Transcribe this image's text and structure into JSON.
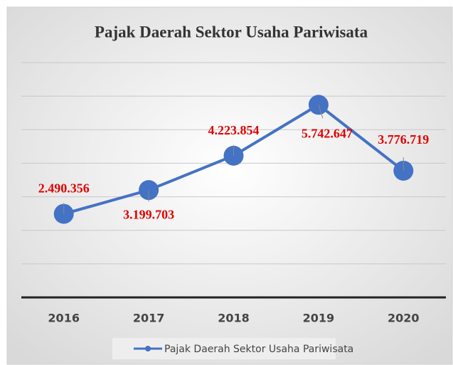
{
  "chart_data": {
    "type": "line",
    "title": "Pajak Daerah Sektor Usaha Pariwisata",
    "categories": [
      "2016",
      "2017",
      "2018",
      "2019",
      "2020"
    ],
    "series": [
      {
        "name": "Pajak Daerah Sektor Usaha Pariwisata",
        "color": "#4472c4",
        "values": [
          2490356,
          3199703,
          4223854,
          5742647,
          3776719
        ],
        "value_labels": [
          "2.490.356",
          "3.199.703",
          "4.223.854",
          "5.742.647",
          "3.776.719"
        ]
      }
    ],
    "ylim": [
      0,
      7000000
    ],
    "yticks": [
      0,
      1000000,
      2000000,
      3000000,
      4000000,
      5000000,
      6000000,
      7000000
    ],
    "grid": true,
    "legend": "bottom"
  }
}
